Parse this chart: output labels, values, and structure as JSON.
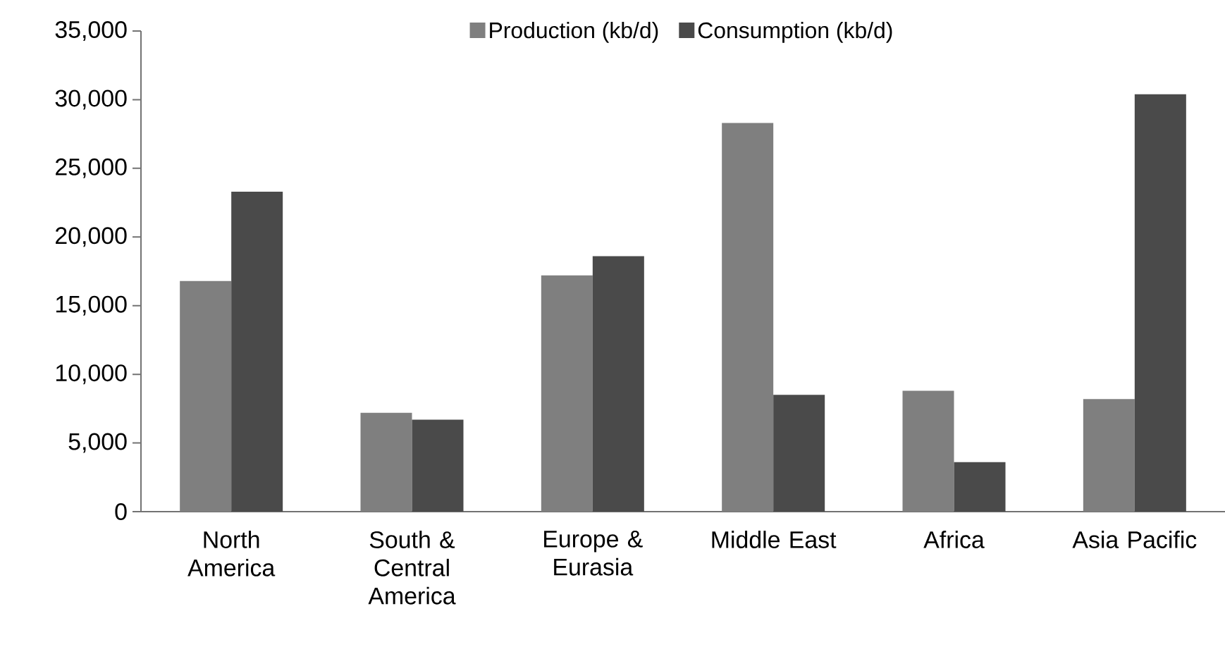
{
  "chart_data": {
    "type": "bar",
    "categories": [
      "North America",
      "South & Central America",
      "Europe & Eurasia",
      "Middle East",
      "Africa",
      "Asia Pacific"
    ],
    "series": [
      {
        "name": "Production (kb/d)",
        "color": "#7f7f7f",
        "values": [
          16800,
          7200,
          17200,
          28300,
          8800,
          8200
        ]
      },
      {
        "name": "Consumption (kb/d)",
        "color": "#4a4a4a",
        "values": [
          23300,
          6700,
          18600,
          8500,
          3600,
          30400
        ]
      }
    ],
    "ylim": [
      0,
      35000
    ],
    "yticks": [
      {
        "value": 0,
        "label": "0"
      },
      {
        "value": 5000,
        "label": "5,000"
      },
      {
        "value": 10000,
        "label": "10,000"
      },
      {
        "value": 15000,
        "label": "15,000"
      },
      {
        "value": 20000,
        "label": "20,000"
      },
      {
        "value": 25000,
        "label": "25,000"
      },
      {
        "value": 30000,
        "label": "30,000"
      },
      {
        "value": 35000,
        "label": "35,000"
      }
    ],
    "grid": false,
    "legend": "top"
  }
}
